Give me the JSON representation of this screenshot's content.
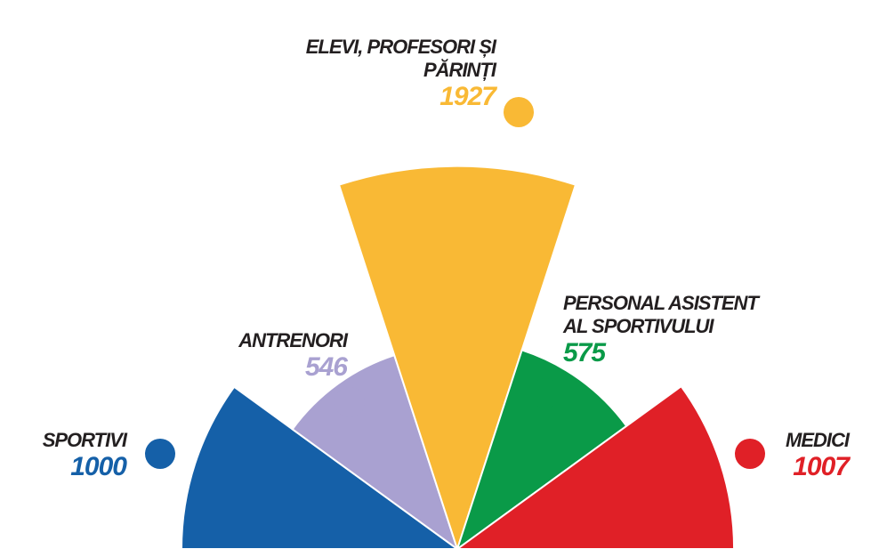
{
  "chart_data": {
    "type": "polar-area",
    "categories": [
      "SPORTIVI",
      "ANTRENORI",
      "ELEVI, PROFESORI ȘI PĂRINȚI",
      "PERSONAL ASISTENT AL SPORTIVULUI",
      "MEDICI"
    ],
    "values": [
      1000,
      546,
      1927,
      575,
      1007
    ],
    "colors": [
      "#1560a8",
      "#a9a1d1",
      "#f9b935",
      "#0a9a48",
      "#e02027"
    ]
  }
}
